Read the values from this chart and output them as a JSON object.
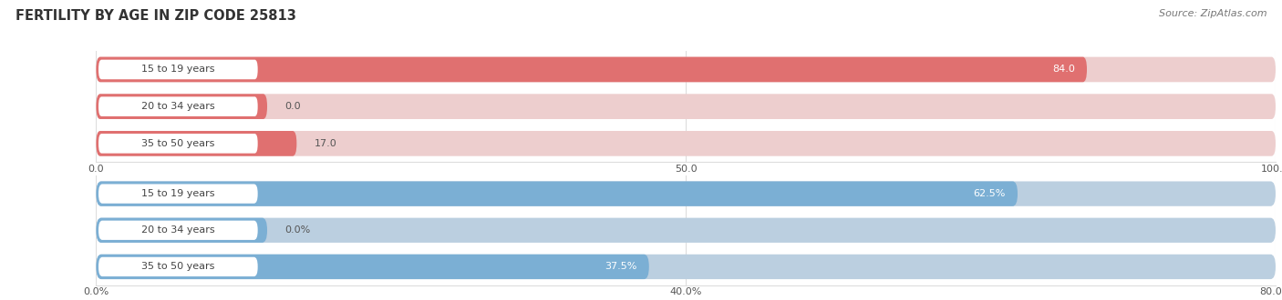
{
  "title": "FERTILITY BY AGE IN ZIP CODE 25813",
  "source": "Source: ZipAtlas.com",
  "top_chart": {
    "categories": [
      "15 to 19 years",
      "20 to 34 years",
      "35 to 50 years"
    ],
    "values": [
      84.0,
      0.0,
      17.0
    ],
    "xlim": [
      0,
      100
    ],
    "xticks": [
      0.0,
      50.0,
      100.0
    ],
    "xtick_labels": [
      "0.0",
      "50.0",
      "100.0"
    ],
    "bar_color": "#E07070",
    "bg_color": "#EDCECE",
    "label_bg_color": "#F8F0F0",
    "value_label_suffix": ""
  },
  "bottom_chart": {
    "categories": [
      "15 to 19 years",
      "20 to 34 years",
      "35 to 50 years"
    ],
    "values": [
      62.5,
      0.0,
      37.5
    ],
    "xlim": [
      0,
      80
    ],
    "xticks": [
      0.0,
      40.0,
      80.0
    ],
    "xtick_labels": [
      "0.0%",
      "40.0%",
      "80.0%"
    ],
    "bar_color": "#7BAFD4",
    "bg_color": "#BBCFE0",
    "label_bg_color": "#EEF3F8",
    "value_label_suffix": "%"
  },
  "bar_height": 0.68,
  "label_fontsize": 8.0,
  "value_fontsize": 8.0,
  "title_fontsize": 10.5,
  "source_fontsize": 8.0,
  "tick_fontsize": 8.0,
  "value_color_inside": "#ffffff",
  "value_color_outside": "#555555",
  "background_color": "#ffffff",
  "grid_color": "#dddddd",
  "label_pill_color": "#ffffff",
  "label_text_color": "#444444"
}
